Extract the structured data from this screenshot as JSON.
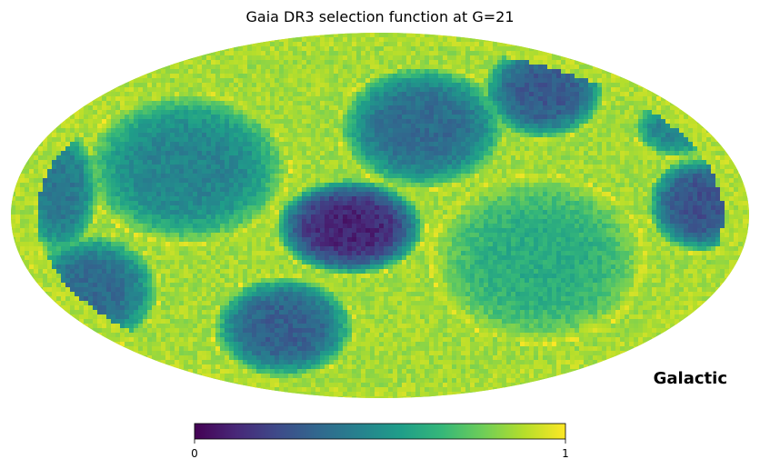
{
  "chart_data": {
    "type": "heatmap",
    "title": "Gaia DR3 selection function at G=21",
    "projection": "mollweide",
    "coordinate_system": "Galactic",
    "colormap": "viridis",
    "colorbar": {
      "orientation": "horizontal",
      "min": 0,
      "max": 1,
      "tick_labels": [
        "0",
        "1"
      ]
    },
    "colors": {
      "viridis": [
        "#440154",
        "#482878",
        "#3e4a89",
        "#31688e",
        "#26828e",
        "#1f9e89",
        "#35b779",
        "#6ece58",
        "#b5de2b",
        "#fde725"
      ],
      "background": "#ffffff",
      "text": "#000000"
    }
  }
}
